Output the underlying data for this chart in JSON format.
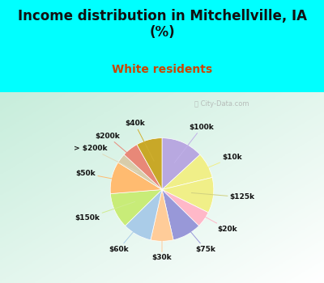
{
  "title": "Income distribution in Mitchellville, IA\n(%)",
  "subtitle": "White residents",
  "title_color": "#111111",
  "subtitle_color": "#cc4400",
  "bg_cyan": "#00ffff",
  "bg_chart": "#d8f0e8",
  "labels": [
    "$100k",
    "$10k",
    "$125k",
    "$20k",
    "$75k",
    "$30k",
    "$60k",
    "$150k",
    "$50k",
    "> $200k",
    "$200k",
    "$40k"
  ],
  "sizes": [
    13,
    8,
    11,
    5,
    9,
    7,
    9,
    11,
    10,
    3,
    5,
    8
  ],
  "colors": [
    "#b8a8e0",
    "#f0ef88",
    "#f0ef88",
    "#ffb8c8",
    "#9898d8",
    "#ffcc99",
    "#aacce8",
    "#c8ec78",
    "#ffbb70",
    "#d8ccaa",
    "#e88878",
    "#c8a828"
  ],
  "line_colors": [
    "#c0b0e8",
    "#f0ef88",
    "#d0d080",
    "#ffb8c8",
    "#9898d8",
    "#ffcc99",
    "#aacce8",
    "#d0ec90",
    "#ffbb70",
    "#e0d8b8",
    "#e88878",
    "#d0b030"
  ],
  "watermark": "ⓘ City-Data.com"
}
